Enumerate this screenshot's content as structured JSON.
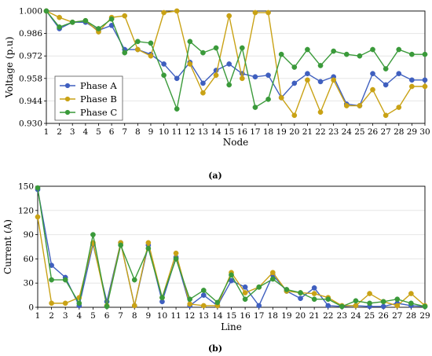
{
  "figure_labels": {
    "a": "(a)",
    "b": "(b)"
  },
  "colors": {
    "Phase A": "#3f5fbf",
    "Phase B": "#c9a215",
    "Phase C": "#3a9a3a"
  },
  "chart_data": [
    {
      "type": "line",
      "xlabel": "Node",
      "ylabel": "Voltage (p.u)",
      "x": [
        1,
        2,
        3,
        4,
        5,
        6,
        7,
        8,
        9,
        10,
        11,
        12,
        13,
        14,
        15,
        16,
        17,
        18,
        19,
        20,
        21,
        22,
        23,
        24,
        25,
        26,
        27,
        28,
        29,
        30
      ],
      "ylim": [
        0.93,
        1.0
      ],
      "yticks": [
        "0.930",
        "0.944",
        "0.958",
        "0.972",
        "0.986",
        "1.000"
      ],
      "grid": "y",
      "legend": "bottom-left",
      "series": [
        {
          "name": "Phase A",
          "values": [
            1.0,
            0.989,
            0.993,
            0.993,
            0.988,
            0.991,
            0.976,
            0.976,
            0.973,
            0.967,
            0.958,
            0.968,
            0.955,
            0.963,
            0.967,
            0.961,
            0.959,
            0.96,
            0.946,
            0.955,
            0.961,
            0.956,
            0.959,
            0.942,
            0.941,
            0.961,
            0.954,
            0.961,
            0.957,
            0.957
          ]
        },
        {
          "name": "Phase B",
          "values": [
            1.0,
            0.996,
            0.993,
            0.994,
            0.987,
            0.996,
            0.997,
            0.976,
            0.972,
            0.999,
            1.0,
            0.967,
            0.949,
            0.96,
            0.997,
            0.958,
            0.999,
            0.999,
            0.946,
            0.935,
            0.957,
            0.937,
            0.957,
            0.941,
            0.941,
            0.951,
            0.935,
            0.94,
            0.953,
            0.953
          ]
        },
        {
          "name": "Phase C",
          "values": [
            1.0,
            0.99,
            0.993,
            0.994,
            0.989,
            0.995,
            0.974,
            0.981,
            0.98,
            0.96,
            0.939,
            0.981,
            0.974,
            0.977,
            0.954,
            0.977,
            0.94,
            0.945,
            0.973,
            0.965,
            0.976,
            0.966,
            0.975,
            0.973,
            0.972,
            0.976,
            0.964,
            0.976,
            0.973,
            0.973
          ]
        }
      ]
    },
    {
      "type": "line",
      "xlabel": "Line",
      "ylabel": "Current (A)",
      "x": [
        1,
        2,
        3,
        4,
        5,
        6,
        7,
        8,
        9,
        10,
        11,
        12,
        13,
        14,
        15,
        16,
        17,
        18,
        19,
        20,
        21,
        22,
        23,
        24,
        25,
        26,
        27,
        28,
        29
      ],
      "ylim": [
        0,
        150
      ],
      "yticks": [
        "0",
        "30",
        "60",
        "90",
        "120",
        "150"
      ],
      "grid": "y",
      "series": [
        {
          "name": "Phase A",
          "values": [
            146,
            52,
            37,
            2,
            78,
            7,
            80,
            2,
            77,
            7,
            62,
            2,
            15,
            2,
            33,
            25,
            2,
            40,
            20,
            11,
            24,
            2,
            1,
            2,
            1,
            1,
            5,
            2,
            1
          ]
        },
        {
          "name": "Phase B",
          "values": [
            112,
            5,
            5,
            12,
            80,
            2,
            80,
            2,
            80,
            12,
            67,
            4,
            2,
            2,
            43,
            18,
            25,
            43,
            20,
            18,
            17,
            12,
            2,
            2,
            17,
            7,
            2,
            17,
            2
          ]
        },
        {
          "name": "Phase C",
          "values": [
            148,
            34,
            34,
            5,
            90,
            1,
            77,
            34,
            73,
            12,
            60,
            10,
            21,
            6,
            40,
            10,
            25,
            35,
            22,
            18,
            10,
            10,
            1,
            8,
            5,
            7,
            10,
            5,
            1
          ]
        }
      ]
    }
  ]
}
